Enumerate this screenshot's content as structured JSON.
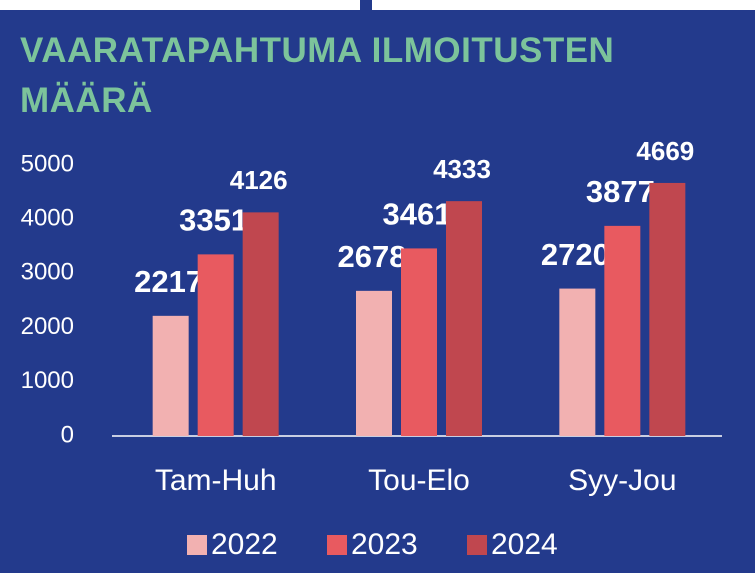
{
  "chart_data": {
    "type": "bar",
    "title": "VAARATAPAHTUMA ILMOITUSTEN MÄÄRÄ",
    "categories": [
      "Tam-Huh",
      "Tou-Elo",
      "Syy-Jou"
    ],
    "series": [
      {
        "name": "2022",
        "color": "#f2b1b1",
        "values": [
          2217,
          2678,
          2720
        ]
      },
      {
        "name": "2023",
        "color": "#e85a60",
        "values": [
          3351,
          3461,
          3877
        ]
      },
      {
        "name": "2024",
        "color": "#c0474f",
        "values": [
          4126,
          4333,
          4669
        ]
      }
    ],
    "ylim": [
      0,
      5000
    ],
    "yticks": [
      0,
      1000,
      2000,
      3000,
      4000,
      5000
    ],
    "legend": "bottom"
  }
}
